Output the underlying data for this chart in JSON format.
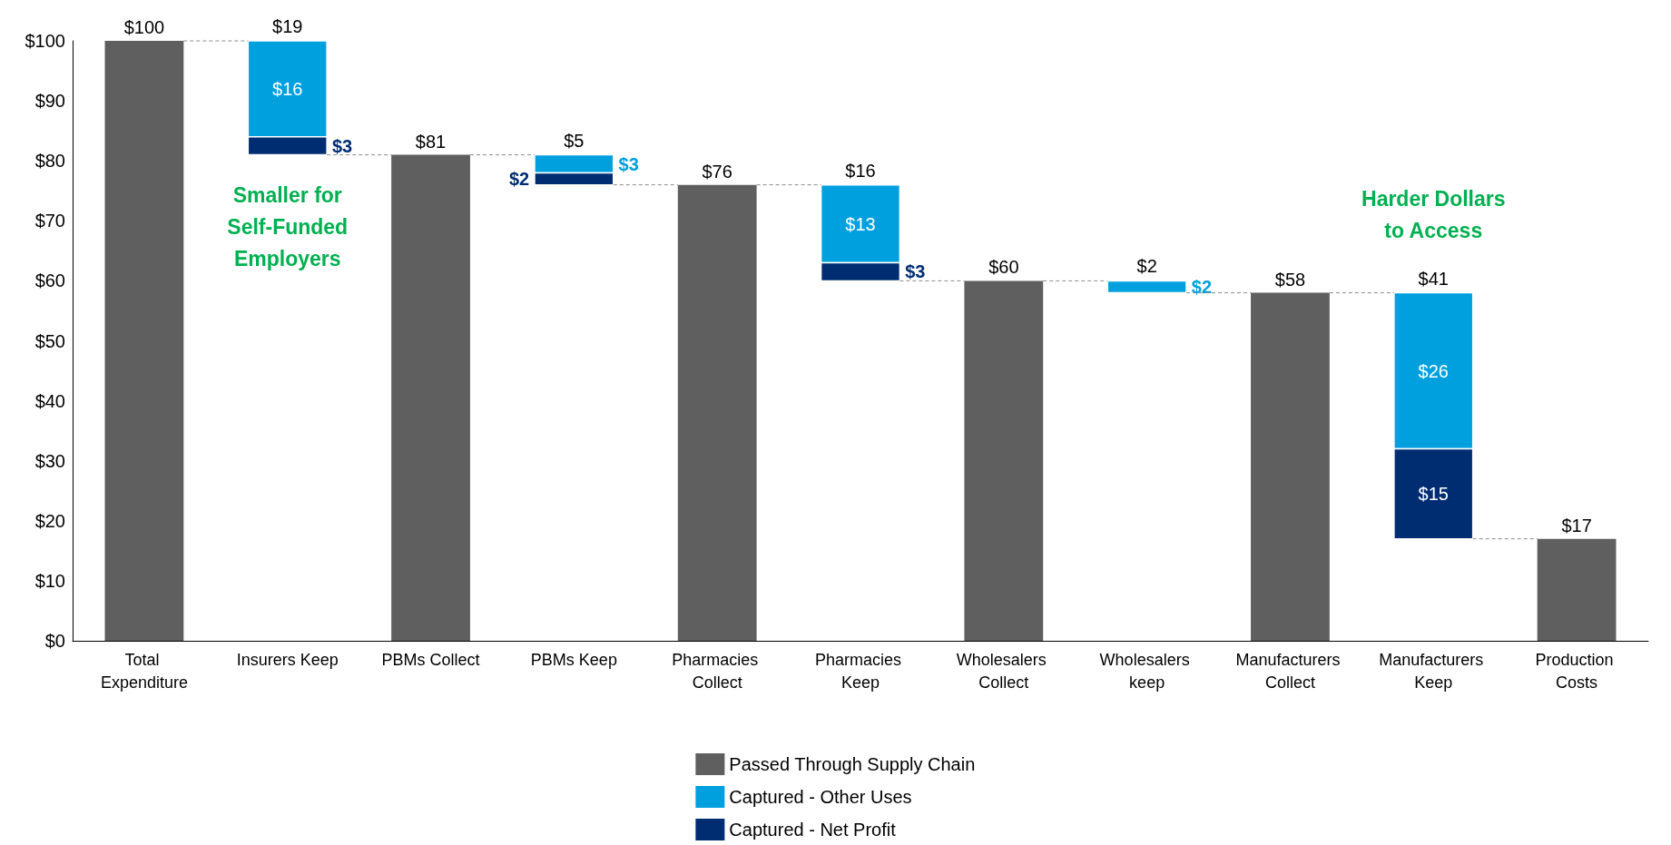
{
  "chart_data": {
    "type": "bar",
    "categories": [
      "Total Expenditure",
      "Insurers Keep",
      "PBMs Collect",
      "PBMs Keep",
      "Pharmacies Collect",
      "Pharmacies Keep",
      "Wholesalers Collect",
      "Wholesalers keep",
      "Manufacturers Collect",
      "Manufacturers Keep",
      "Production Costs"
    ],
    "series": [
      {
        "name": "Passed Through Supply Chain",
        "color": "#5f5f5f",
        "values": [
          100,
          null,
          81,
          null,
          76,
          null,
          60,
          null,
          58,
          null,
          17
        ],
        "base": [
          0,
          null,
          0,
          null,
          0,
          null,
          0,
          null,
          0,
          null,
          0
        ],
        "value_labels": [
          "$100",
          null,
          "$81",
          null,
          "$76",
          null,
          "$60",
          null,
          "$58",
          null,
          "$17"
        ]
      },
      {
        "name": "Captured - Other Uses",
        "color": "#00a0df",
        "values": [
          null,
          16,
          null,
          3,
          null,
          13,
          null,
          2,
          null,
          26,
          null
        ],
        "base": [
          null,
          84,
          null,
          78,
          null,
          63,
          null,
          58,
          null,
          32,
          null
        ],
        "value_labels": [
          null,
          "$16",
          null,
          "$3",
          null,
          "$13",
          null,
          "$2",
          null,
          "$26",
          null
        ]
      },
      {
        "name": "Captured - Net Profit",
        "color": "#002d72",
        "values": [
          null,
          3,
          null,
          2,
          null,
          3,
          null,
          null,
          null,
          15,
          null
        ],
        "base": [
          null,
          81,
          null,
          76,
          null,
          60,
          null,
          null,
          null,
          17,
          null
        ],
        "value_labels": [
          null,
          "$3",
          null,
          "$2",
          null,
          "$3",
          null,
          null,
          null,
          "$15",
          null
        ]
      }
    ],
    "totals": [
      null,
      "$19",
      null,
      "$5",
      null,
      "$16",
      null,
      "$2",
      null,
      "$41",
      null
    ],
    "ylim": [
      0,
      100
    ],
    "yticks": [
      {
        "value": 0,
        "label": "$0"
      },
      {
        "value": 10,
        "label": "$10"
      },
      {
        "value": 20,
        "label": "$20"
      },
      {
        "value": 30,
        "label": "$30"
      },
      {
        "value": 40,
        "label": "$40"
      },
      {
        "value": 50,
        "label": "$50"
      },
      {
        "value": 60,
        "label": "$60"
      },
      {
        "value": 70,
        "label": "$70"
      },
      {
        "value": 80,
        "label": "$80"
      },
      {
        "value": 90,
        "label": "$90"
      },
      {
        "value": 100,
        "label": "$100"
      }
    ],
    "grid": false,
    "legend": "bottom",
    "annotations": [
      "Smaller for\nSelf-Funded\nEmployers",
      "Harder Dollars\nto Access"
    ]
  }
}
